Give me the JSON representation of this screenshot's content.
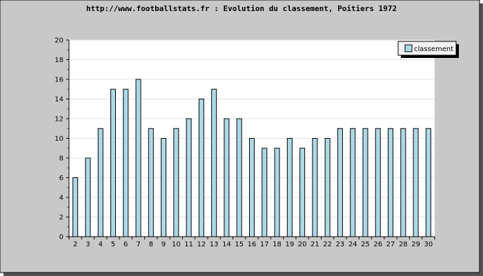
{
  "chart_data": {
    "type": "bar",
    "title": "http://www.footballstats.fr : Evolution du classement, Poitiers 1972",
    "categories": [
      "2",
      "3",
      "4",
      "5",
      "6",
      "7",
      "8",
      "9",
      "10",
      "11",
      "12",
      "13",
      "14",
      "15",
      "16",
      "17",
      "18",
      "19",
      "20",
      "21",
      "22",
      "23",
      "24",
      "25",
      "26",
      "27",
      "28",
      "29",
      "30"
    ],
    "series": [
      {
        "name": "classement",
        "values": [
          6,
          8,
          11,
          15,
          15,
          16,
          11,
          10,
          11,
          12,
          14,
          15,
          12,
          12,
          10,
          9,
          9,
          10,
          9,
          10,
          10,
          11,
          11,
          11,
          11,
          11,
          11,
          11,
          11
        ]
      }
    ],
    "ylim": [
      0,
      20
    ],
    "yticks": [
      0,
      2,
      4,
      6,
      8,
      10,
      12,
      14,
      16,
      18,
      20
    ],
    "grid": true,
    "legend_position": "top-right",
    "colors": {
      "frame_bg": "#c8c8c8",
      "plot_bg": "#ffffff",
      "bar_fill": "#add8e6",
      "bar_stroke": "#000000",
      "grid": "#e2e2e2",
      "shadow": "#555555"
    }
  }
}
